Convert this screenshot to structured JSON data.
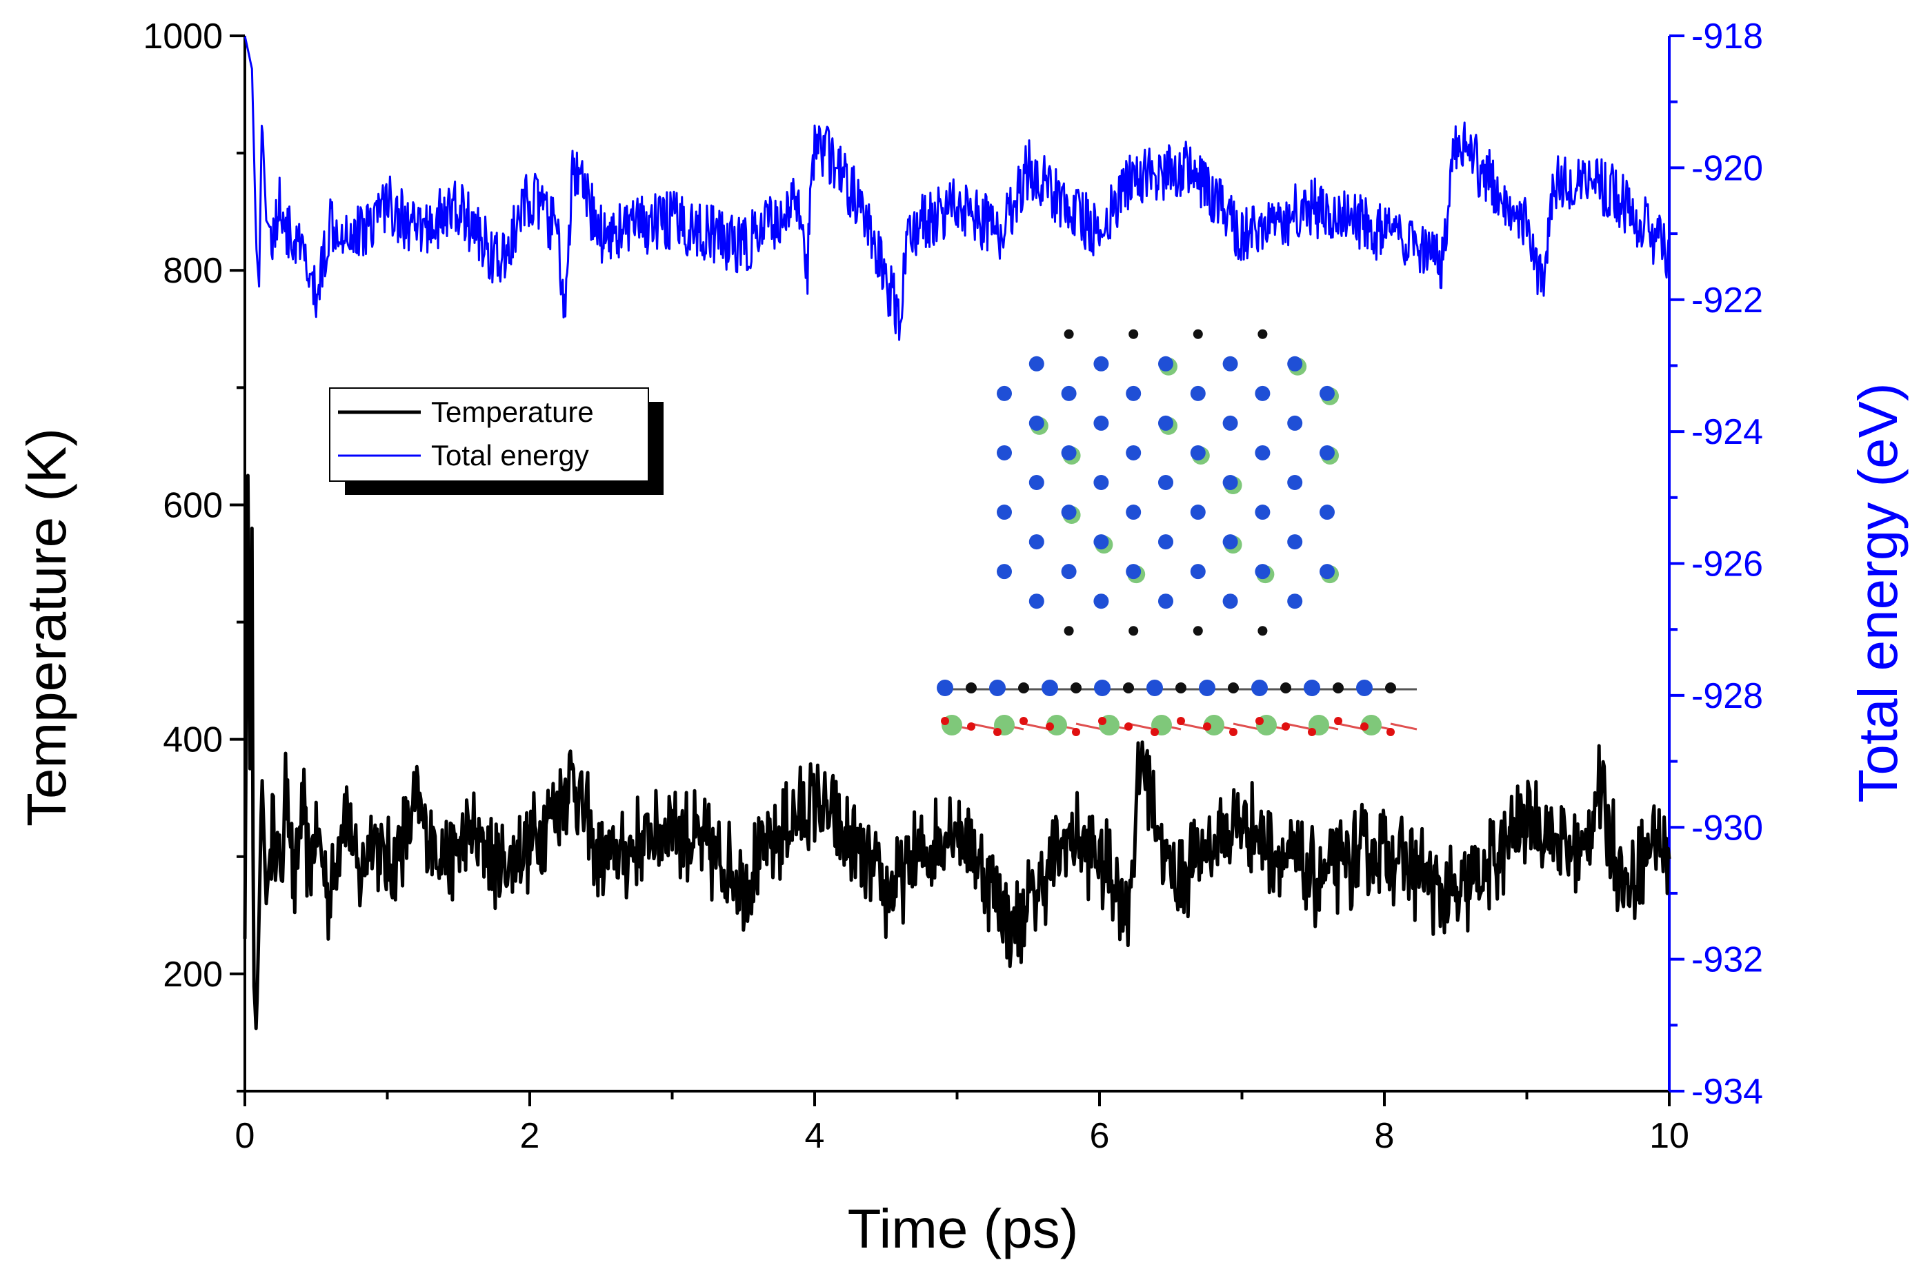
{
  "chart_data": {
    "type": "line",
    "title": "",
    "xlabel": "Time (ps)",
    "ylabel_left": "Temperature (K)",
    "ylabel_right": "Total energy (eV)",
    "xlim": [
      0,
      10
    ],
    "ylim_left": [
      100,
      1000
    ],
    "ylim_right": [
      -934,
      -918
    ],
    "x_ticks": [
      0,
      2,
      4,
      6,
      8,
      10
    ],
    "x_tick_labels": [
      "0",
      "2",
      "4",
      "6",
      "8",
      "10"
    ],
    "y_left_ticks": [
      200,
      400,
      600,
      800,
      1000
    ],
    "y_left_tick_labels": [
      "200",
      "400",
      "600",
      "800",
      "1000"
    ],
    "y_right_ticks": [
      -934,
      -932,
      -930,
      -928,
      -926,
      -924,
      -922,
      -920,
      -918
    ],
    "y_right_tick_labels": [
      "-934",
      "-932",
      "-930",
      "-928",
      "-926",
      "-924",
      "-922",
      "-920",
      "-918"
    ],
    "grid": false,
    "legend_position": "upper-left",
    "series": [
      {
        "name": "Temperature",
        "axis": "left",
        "color": "#000000",
        "x": [
          0.0,
          0.02,
          0.04,
          0.05,
          0.06,
          0.08,
          0.1,
          0.12,
          0.15,
          0.2,
          0.25,
          0.3,
          0.35,
          0.4,
          0.45,
          0.5,
          0.6,
          0.7,
          0.8,
          0.9,
          1.0,
          1.2,
          1.4,
          1.6,
          1.8,
          2.0,
          2.3,
          2.5,
          3.0,
          3.5,
          4.0,
          4.5,
          5.0,
          5.4,
          5.8,
          6.0,
          6.2,
          6.3,
          6.5,
          7.0,
          7.5,
          8.0,
          8.5,
          9.0,
          9.4,
          9.5,
          9.7,
          9.9,
          10.0
        ],
        "values": [
          230,
          650,
          300,
          580,
          200,
          150,
          250,
          370,
          260,
          340,
          280,
          370,
          260,
          350,
          290,
          330,
          260,
          350,
          280,
          320,
          290,
          340,
          300,
          320,
          290,
          310,
          370,
          290,
          330,
          280,
          350,
          270,
          330,
          240,
          320,
          300,
          260,
          390,
          280,
          330,
          280,
          310,
          260,
          330,
          300,
          360,
          270,
          320,
          300
        ]
      },
      {
        "name": "Total energy",
        "axis": "right",
        "color": "#0000ff",
        "x": [
          0.0,
          0.05,
          0.08,
          0.1,
          0.12,
          0.15,
          0.2,
          0.25,
          0.3,
          0.4,
          0.5,
          0.6,
          0.8,
          1.0,
          1.2,
          1.5,
          1.8,
          2.0,
          2.2,
          2.25,
          2.3,
          2.5,
          3.0,
          3.5,
          3.9,
          3.95,
          4.0,
          4.3,
          4.6,
          4.65,
          5.0,
          5.3,
          5.5,
          6.0,
          6.2,
          6.6,
          7.0,
          7.5,
          8.0,
          8.4,
          8.5,
          9.0,
          9.1,
          9.2,
          9.5,
          9.8,
          10.0
        ],
        "values": [
          -918,
          -918.5,
          -921.2,
          -921.8,
          -919.2,
          -920.8,
          -921,
          -920.5,
          -921,
          -921.3,
          -922,
          -920.8,
          -921,
          -920.5,
          -921,
          -920.6,
          -921.5,
          -920.4,
          -921,
          -922.4,
          -920,
          -921,
          -920.8,
          -921.2,
          -920.5,
          -921.5,
          -919.5,
          -920.5,
          -922.3,
          -921,
          -920.5,
          -921,
          -920,
          -921,
          -920.2,
          -920,
          -921,
          -920.6,
          -921,
          -921.5,
          -919.6,
          -920.8,
          -921.8,
          -920.2,
          -920.2,
          -920.8,
          -921.3
        ]
      }
    ],
    "legend": {
      "entries": [
        "Temperature",
        "Total energy"
      ]
    },
    "inset": {
      "description_visible": false,
      "colors": {
        "blue_atom": "#1f4fd6",
        "green_atom": "#7fc87a",
        "red_atom": "#e01010",
        "black_atom": "#111111",
        "bond": "#555555"
      }
    }
  }
}
